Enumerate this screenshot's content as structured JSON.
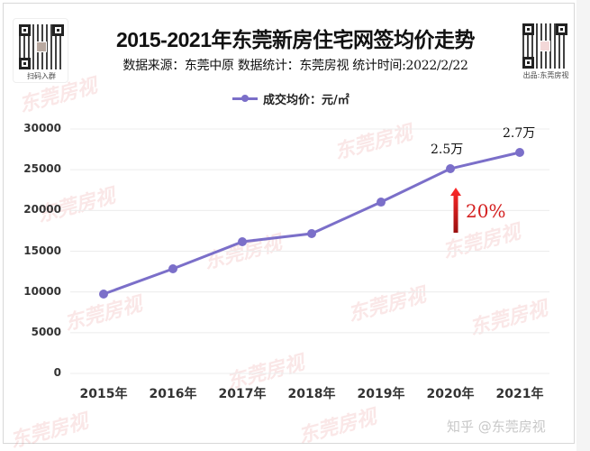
{
  "header": {
    "title": "2015-2021年东莞新房住宅网签均价走势",
    "subtitle": "数据来源：东莞中原  数据统计：东莞房视  统计时间:2022/2/22",
    "qr_left_caption": "扫码入群",
    "qr_right_caption": "出品:东莞房视"
  },
  "legend": {
    "label": "成交均价：元/㎡",
    "color": "#7b6fc9"
  },
  "watermark_text": "东莞房视",
  "credit": "知乎 @东莞房视",
  "annotations": {
    "point_2020": "2.5万",
    "point_2021": "2.7万",
    "growth": "20%",
    "growth_color": "#d42020"
  },
  "chart_data": {
    "type": "line",
    "title": "2015-2021年东莞新房住宅网签均价走势",
    "subtitle": "数据来源：东莞中原  数据统计：东莞房视  统计时间:2022/2/22",
    "xlabel": "",
    "ylabel": "",
    "categories": [
      "2015年",
      "2016年",
      "2017年",
      "2018年",
      "2019年",
      "2020年",
      "2021年"
    ],
    "series": [
      {
        "name": "成交均价：元/㎡",
        "color": "#7b6fc9",
        "values": [
          9740,
          12840,
          16160,
          17160,
          21030,
          25130,
          27120
        ]
      }
    ],
    "ylim": [
      0,
      30000
    ],
    "yticks": [
      "0",
      "5000",
      "10000",
      "15000",
      "20000",
      "25000",
      "30000"
    ],
    "grid": true,
    "legend_position": "top",
    "annotations": [
      {
        "x": "2020年",
        "text": "2.5万"
      },
      {
        "x": "2021年",
        "text": "2.7万"
      },
      {
        "x": "2020年",
        "text": "20%",
        "note": "red up-arrow below point"
      }
    ]
  }
}
